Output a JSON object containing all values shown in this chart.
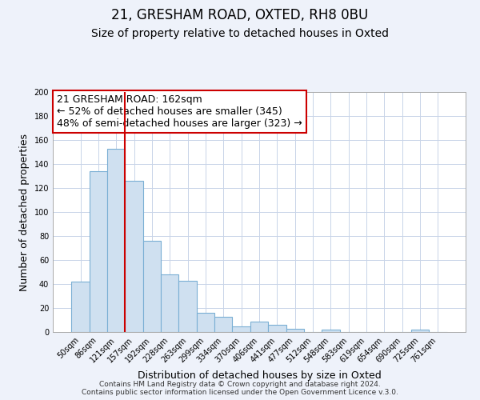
{
  "title": "21, GRESHAM ROAD, OXTED, RH8 0BU",
  "subtitle": "Size of property relative to detached houses in Oxted",
  "xlabel": "Distribution of detached houses by size in Oxted",
  "ylabel": "Number of detached properties",
  "footer_line1": "Contains HM Land Registry data © Crown copyright and database right 2024.",
  "footer_line2": "Contains public sector information licensed under the Open Government Licence v.3.0.",
  "bar_labels": [
    "50sqm",
    "86sqm",
    "121sqm",
    "157sqm",
    "192sqm",
    "228sqm",
    "263sqm",
    "299sqm",
    "334sqm",
    "370sqm",
    "406sqm",
    "441sqm",
    "477sqm",
    "512sqm",
    "548sqm",
    "583sqm",
    "619sqm",
    "654sqm",
    "690sqm",
    "725sqm",
    "761sqm"
  ],
  "bar_values": [
    42,
    134,
    153,
    126,
    76,
    48,
    43,
    16,
    13,
    5,
    9,
    6,
    3,
    0,
    2,
    0,
    0,
    0,
    0,
    2,
    0
  ],
  "bar_color": "#cfe0f0",
  "bar_edge_color": "#7aafd4",
  "vline_color": "#cc0000",
  "vline_at_bar_index": 3,
  "annotation_text_line1": "21 GRESHAM ROAD: 162sqm",
  "annotation_text_line2": "← 52% of detached houses are smaller (345)",
  "annotation_text_line3": "48% of semi-detached houses are larger (323) →",
  "ylim": [
    0,
    200
  ],
  "yticks": [
    0,
    20,
    40,
    60,
    80,
    100,
    120,
    140,
    160,
    180,
    200
  ],
  "bg_color": "#eef2fa",
  "plot_bg_color": "#ffffff",
  "grid_color": "#c8d4e8",
  "title_fontsize": 12,
  "subtitle_fontsize": 10,
  "axis_label_fontsize": 9,
  "tick_fontsize": 7,
  "annotation_fontsize": 9,
  "footer_fontsize": 6.5
}
